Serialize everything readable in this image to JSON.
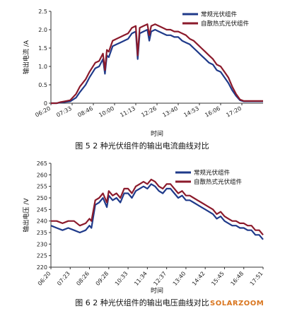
{
  "watermark": "SOLARZOOM",
  "chart_data": [
    {
      "type": "line",
      "caption": "图 5  2 种光伏组件的输出电流曲线对比",
      "xlabel": "时间",
      "ylabel": "输出电流 /A",
      "ylim": [
        0,
        2.5
      ],
      "yticks": [
        "0",
        "0.5",
        "1.0",
        "1.5",
        "2.0",
        "2.5"
      ],
      "xticks": [
        "06:20",
        "07:33",
        "08:46",
        "10:00",
        "11:13",
        "12:26",
        "13:40",
        "14:53",
        "16:06",
        "17:20"
      ],
      "xrange": [
        0,
        11.0
      ],
      "grid": false,
      "legend_position": "top-right",
      "series": [
        {
          "name": "常规光伏组件",
          "color": "#1f3a8a",
          "x": [
            0.0,
            0.3,
            0.5,
            0.7,
            1.0,
            1.3,
            1.5,
            1.8,
            2.0,
            2.3,
            2.5,
            2.7,
            2.8,
            2.9,
            3.0,
            3.2,
            3.4,
            3.6,
            3.8,
            4.0,
            4.2,
            4.4,
            4.5,
            4.6,
            4.8,
            5.0,
            5.1,
            5.2,
            5.4,
            5.6,
            5.8,
            6.0,
            6.2,
            6.4,
            6.6,
            6.8,
            7.0,
            7.2,
            7.4,
            7.6,
            7.8,
            8.0,
            8.2,
            8.4,
            8.6,
            8.8,
            9.0,
            9.2,
            9.4,
            9.6,
            9.8,
            10.0,
            10.3,
            10.6,
            11.0
          ],
          "y": [
            0.0,
            0.0,
            0.02,
            0.03,
            0.05,
            0.15,
            0.3,
            0.5,
            0.7,
            0.95,
            1.0,
            1.2,
            0.8,
            1.3,
            1.25,
            1.55,
            1.6,
            1.65,
            1.7,
            1.75,
            1.9,
            1.95,
            1.2,
            1.9,
            1.95,
            2.0,
            1.7,
            1.95,
            2.0,
            1.95,
            1.9,
            1.85,
            1.85,
            1.8,
            1.8,
            1.7,
            1.65,
            1.6,
            1.5,
            1.4,
            1.3,
            1.2,
            1.1,
            1.05,
            0.9,
            0.85,
            0.7,
            0.55,
            0.35,
            0.2,
            0.08,
            0.05,
            0.05,
            0.05,
            0.05
          ]
        },
        {
          "name": "自散热式光伏组件",
          "color": "#8b1a2b",
          "x": [
            0.0,
            0.3,
            0.5,
            0.7,
            1.0,
            1.3,
            1.5,
            1.8,
            2.0,
            2.3,
            2.5,
            2.7,
            2.8,
            2.9,
            3.0,
            3.2,
            3.4,
            3.6,
            3.8,
            4.0,
            4.2,
            4.4,
            4.5,
            4.6,
            4.8,
            5.0,
            5.1,
            5.2,
            5.4,
            5.6,
            5.8,
            6.0,
            6.2,
            6.4,
            6.6,
            6.8,
            7.0,
            7.2,
            7.4,
            7.6,
            7.8,
            8.0,
            8.2,
            8.4,
            8.6,
            8.8,
            9.0,
            9.2,
            9.4,
            9.6,
            9.8,
            10.0,
            10.3,
            10.6,
            11.0
          ],
          "y": [
            0.0,
            0.0,
            0.03,
            0.05,
            0.08,
            0.25,
            0.45,
            0.65,
            0.85,
            1.1,
            1.15,
            1.35,
            0.9,
            1.45,
            1.4,
            1.7,
            1.75,
            1.8,
            1.85,
            1.9,
            2.05,
            2.1,
            1.3,
            2.05,
            2.1,
            2.15,
            1.85,
            2.1,
            2.15,
            2.1,
            2.05,
            2.0,
            2.0,
            1.95,
            1.95,
            1.9,
            1.85,
            1.75,
            1.7,
            1.6,
            1.5,
            1.4,
            1.3,
            1.2,
            1.05,
            1.0,
            0.85,
            0.7,
            0.45,
            0.25,
            0.1,
            0.06,
            0.06,
            0.06,
            0.06
          ]
        }
      ]
    },
    {
      "type": "line",
      "caption": "图 6  2 种光伏组件的输出电压曲线对比",
      "xlabel": "时间",
      "ylabel": "输出电压 /V",
      "ylim": [
        220,
        265
      ],
      "yticks": [
        "220",
        "225",
        "230",
        "235",
        "240",
        "245",
        "250",
        "255",
        "260",
        "265"
      ],
      "xticks": [
        "06:20",
        "07:23",
        "08:26",
        "09:28",
        "10:33",
        "11:34",
        "12:37",
        "13:40",
        "14:42",
        "15:45",
        "16:48",
        "17:51"
      ],
      "xrange": [
        0,
        11.0
      ],
      "grid": false,
      "legend_position": "top-right",
      "series": [
        {
          "name": "常规光伏组件",
          "color": "#1f3a8a",
          "x": [
            0.0,
            0.3,
            0.6,
            0.9,
            1.2,
            1.5,
            1.8,
            2.0,
            2.1,
            2.3,
            2.5,
            2.7,
            2.9,
            3.0,
            3.2,
            3.4,
            3.6,
            3.8,
            4.0,
            4.2,
            4.4,
            4.6,
            4.8,
            5.0,
            5.2,
            5.4,
            5.6,
            5.8,
            6.0,
            6.2,
            6.4,
            6.6,
            6.8,
            7.0,
            7.2,
            7.4,
            7.6,
            7.8,
            8.0,
            8.2,
            8.4,
            8.6,
            8.8,
            9.0,
            9.2,
            9.4,
            9.6,
            9.8,
            10.0,
            10.2,
            10.4,
            10.6,
            10.8,
            11.0
          ],
          "y": [
            238,
            237,
            236,
            237,
            236,
            235,
            236,
            238,
            237,
            247,
            248,
            250,
            246,
            251,
            249,
            250,
            248,
            252,
            252,
            250,
            253,
            254,
            255,
            254,
            256,
            255,
            253,
            252,
            254,
            254,
            252,
            250,
            251,
            249,
            249,
            248,
            247,
            246,
            245,
            244,
            243,
            241,
            242,
            240,
            239,
            238,
            238,
            237,
            237,
            236,
            236,
            234,
            234,
            232
          ]
        },
        {
          "name": "自散热式光伏组件",
          "color": "#8b1a2b",
          "x": [
            0.0,
            0.3,
            0.6,
            0.9,
            1.2,
            1.5,
            1.8,
            2.0,
            2.1,
            2.3,
            2.5,
            2.7,
            2.9,
            3.0,
            3.2,
            3.4,
            3.6,
            3.8,
            4.0,
            4.2,
            4.4,
            4.6,
            4.8,
            5.0,
            5.2,
            5.4,
            5.6,
            5.8,
            6.0,
            6.2,
            6.4,
            6.6,
            6.8,
            7.0,
            7.2,
            7.4,
            7.6,
            7.8,
            8.0,
            8.2,
            8.4,
            8.6,
            8.8,
            9.0,
            9.2,
            9.4,
            9.6,
            9.8,
            10.0,
            10.2,
            10.4,
            10.6,
            10.8,
            11.0
          ],
          "y": [
            240,
            240,
            239,
            240,
            240,
            238,
            239,
            241,
            240,
            249,
            250,
            252,
            248,
            253,
            251,
            252,
            250,
            254,
            254,
            252,
            255,
            256,
            257,
            256,
            258,
            257,
            255,
            254,
            256,
            256,
            254,
            252,
            253,
            251,
            251,
            250,
            249,
            248,
            247,
            246,
            245,
            243,
            244,
            242,
            241,
            240,
            240,
            239,
            239,
            238,
            238,
            236,
            236,
            234
          ]
        }
      ]
    }
  ]
}
